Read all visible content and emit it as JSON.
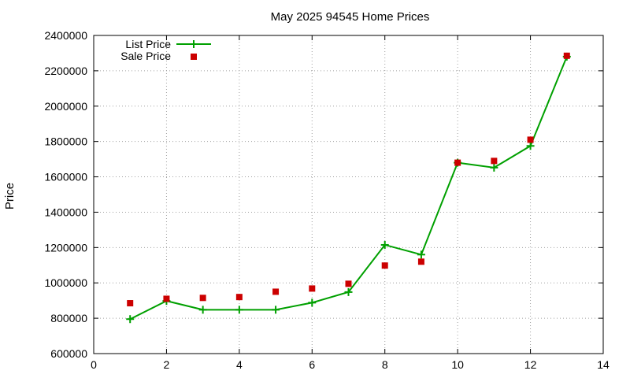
{
  "chart_data": {
    "type": "line",
    "title": "May 2025 94545 Home Prices",
    "xlabel": "",
    "ylabel": "Price",
    "xlim": [
      0,
      14
    ],
    "ylim": [
      600000,
      2400000
    ],
    "x_ticks": [
      0,
      2,
      4,
      6,
      8,
      10,
      12,
      14
    ],
    "y_ticks": [
      600000,
      800000,
      1000000,
      1200000,
      1400000,
      1600000,
      1800000,
      2000000,
      2200000,
      2400000
    ],
    "grid": true,
    "legend_position": "top-left",
    "series": [
      {
        "name": "List Price",
        "style": "line with plus markers",
        "color": "#00a000",
        "x": [
          1,
          2,
          3,
          4,
          5,
          6,
          7,
          8,
          9,
          10,
          11,
          12,
          13
        ],
        "y": [
          795000,
          898000,
          848000,
          848000,
          848000,
          888000,
          948000,
          1215000,
          1160000,
          1680000,
          1652000,
          1775000,
          2280000
        ]
      },
      {
        "name": "Sale Price",
        "style": "square markers",
        "color": "#cc0000",
        "x": [
          1,
          2,
          3,
          4,
          5,
          6,
          7,
          8,
          9,
          10,
          11,
          12,
          13
        ],
        "y": [
          885000,
          910000,
          915000,
          920000,
          950000,
          968000,
          995000,
          1098000,
          1120000,
          1680000,
          1690000,
          1810000,
          2285000
        ]
      }
    ]
  }
}
